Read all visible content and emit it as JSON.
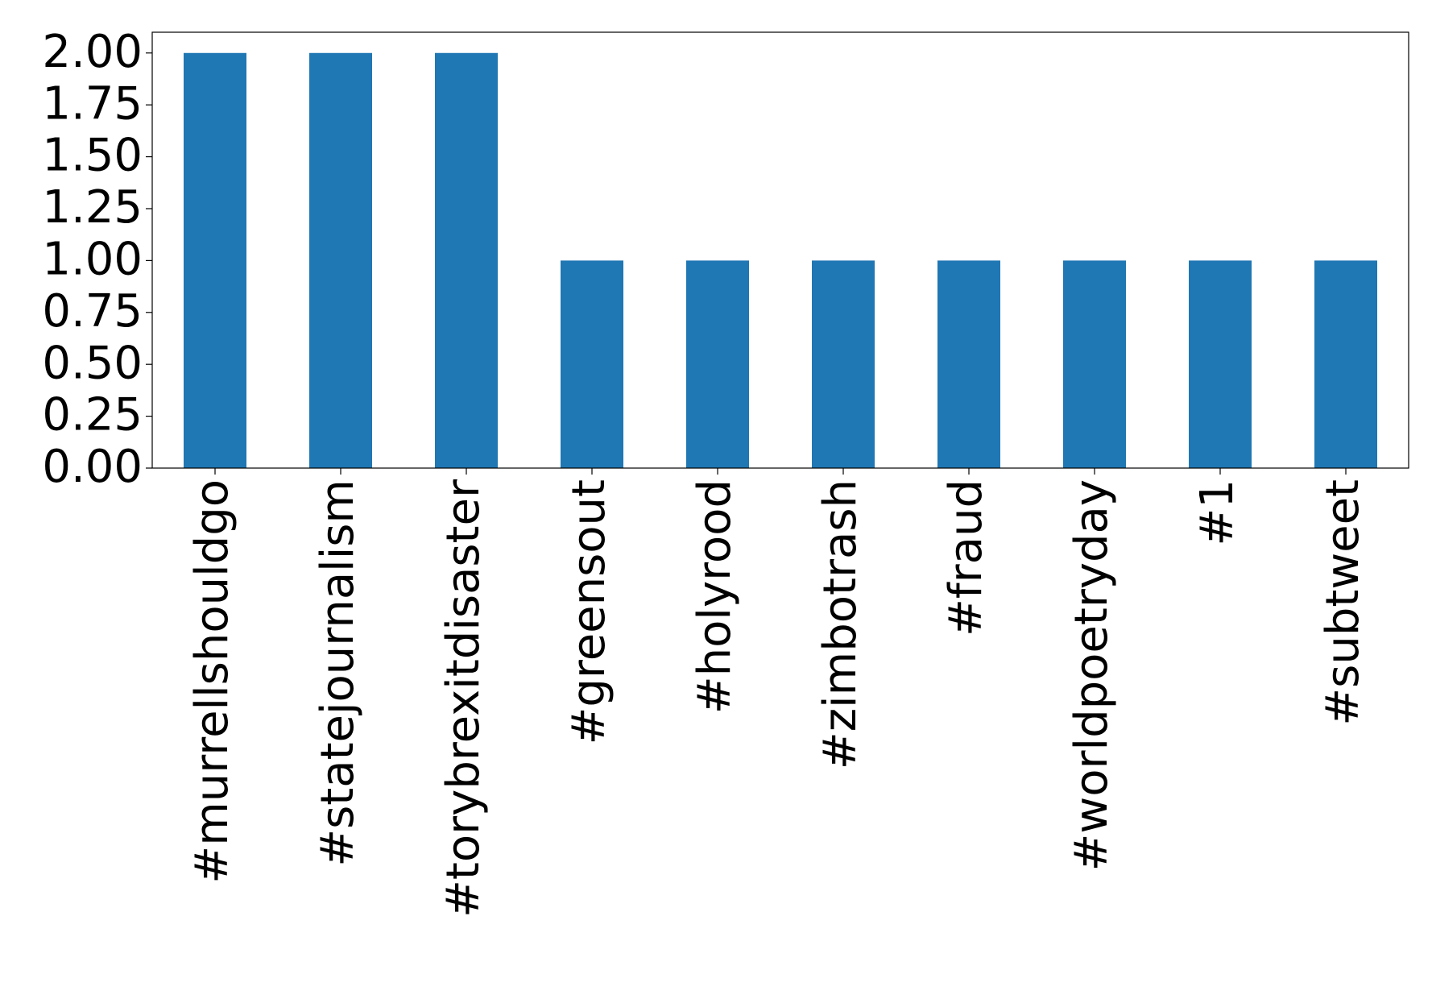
{
  "chart_data": {
    "type": "bar",
    "categories": [
      "#murrellshouldgo",
      "#statejournalism",
      "#torybrexitdisaster",
      "#greensout",
      "#holyrood",
      "#zimbotrash",
      "#fraud",
      "#worldpoetryday",
      "#1",
      "#subtweet"
    ],
    "values": [
      2,
      2,
      2,
      1,
      1,
      1,
      1,
      1,
      1,
      1
    ],
    "color": "#1f77b4",
    "ylim": [
      0,
      2.1
    ],
    "yticks": [
      {
        "value": 0,
        "label": "0.00"
      },
      {
        "value": 0.25,
        "label": "0.25"
      },
      {
        "value": 0.5,
        "label": "0.50"
      },
      {
        "value": 0.75,
        "label": "0.75"
      },
      {
        "value": 1,
        "label": "1.00"
      },
      {
        "value": 1.25,
        "label": "1.25"
      },
      {
        "value": 1.5,
        "label": "1.50"
      },
      {
        "value": 1.75,
        "label": "1.75"
      },
      {
        "value": 2,
        "label": "2.00"
      }
    ],
    "grid": false
  }
}
